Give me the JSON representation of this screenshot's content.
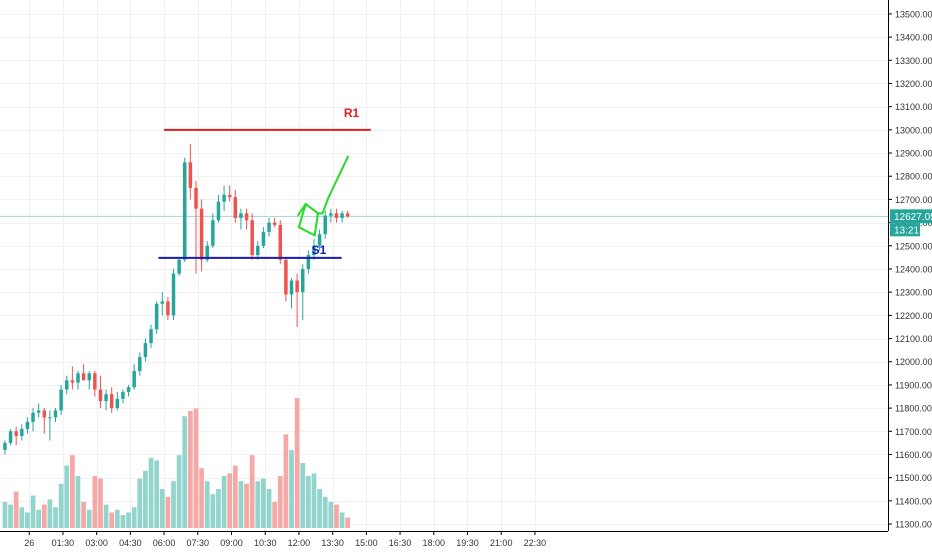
{
  "chart_data": {
    "type": "candlestick",
    "price_axis": {
      "ylim": [
        11270,
        13560
      ],
      "ticks": [
        "13500.00",
        "13400.00",
        "13300.00",
        "13200.00",
        "13100.00",
        "13000.00",
        "12900.00",
        "12800.00",
        "12700.00",
        "12600.00",
        "12500.00",
        "12400.00",
        "12300.00",
        "12200.00",
        "12100.00",
        "12000.00",
        "11900.00",
        "11800.00",
        "11700.00",
        "11600.00",
        "11500.00",
        "11400.00",
        "11300.00"
      ]
    },
    "time_axis": {
      "range_hours": [
        -1.3,
        39.0
      ],
      "ticks": [
        {
          "label": "26",
          "h": 0
        },
        {
          "label": "01:30",
          "h": 1.5
        },
        {
          "label": "03:00",
          "h": 3.0
        },
        {
          "label": "04:30",
          "h": 4.5
        },
        {
          "label": "06:00",
          "h": 6.0
        },
        {
          "label": "07:30",
          "h": 7.5
        },
        {
          "label": "09:00",
          "h": 9.0
        },
        {
          "label": "10:30",
          "h": 10.5
        },
        {
          "label": "12:00",
          "h": 12.0
        },
        {
          "label": "13:30",
          "h": 13.5
        },
        {
          "label": "15:00",
          "h": 15.0
        },
        {
          "label": "16:30",
          "h": 16.5
        },
        {
          "label": "18:00",
          "h": 18.0
        },
        {
          "label": "19:30",
          "h": 19.5
        },
        {
          "label": "21:00",
          "h": 21.0
        },
        {
          "label": "22:30",
          "h": 22.5
        }
      ]
    },
    "volume_max": 100,
    "candles": [
      {
        "o": 11620,
        "h": 11660,
        "l": 11600,
        "c": 11650,
        "v": 20
      },
      {
        "o": 11650,
        "h": 11710,
        "l": 11640,
        "c": 11700,
        "v": 18
      },
      {
        "o": 11700,
        "h": 11720,
        "l": 11640,
        "c": 11680,
        "v": 28
      },
      {
        "o": 11680,
        "h": 11730,
        "l": 11660,
        "c": 11710,
        "v": 16
      },
      {
        "o": 11710,
        "h": 11760,
        "l": 11690,
        "c": 11740,
        "v": 12
      },
      {
        "o": 11740,
        "h": 11800,
        "l": 11700,
        "c": 11780,
        "v": 25
      },
      {
        "o": 11780,
        "h": 11820,
        "l": 11760,
        "c": 11790,
        "v": 14
      },
      {
        "o": 11790,
        "h": 11800,
        "l": 11690,
        "c": 11760,
        "v": 18
      },
      {
        "o": 11760,
        "h": 11790,
        "l": 11660,
        "c": 11760,
        "v": 22
      },
      {
        "o": 11760,
        "h": 11800,
        "l": 11740,
        "c": 11790,
        "v": 16
      },
      {
        "o": 11790,
        "h": 11900,
        "l": 11770,
        "c": 11880,
        "v": 34
      },
      {
        "o": 11880,
        "h": 11940,
        "l": 11860,
        "c": 11920,
        "v": 48
      },
      {
        "o": 11920,
        "h": 11980,
        "l": 11880,
        "c": 11910,
        "v": 56
      },
      {
        "o": 11910,
        "h": 11960,
        "l": 11880,
        "c": 11950,
        "v": 40
      },
      {
        "o": 11950,
        "h": 11990,
        "l": 11920,
        "c": 11920,
        "v": 20
      },
      {
        "o": 11920,
        "h": 11960,
        "l": 11880,
        "c": 11950,
        "v": 14
      },
      {
        "o": 11950,
        "h": 11960,
        "l": 11850,
        "c": 11880,
        "v": 40
      },
      {
        "o": 11880,
        "h": 11940,
        "l": 11800,
        "c": 11830,
        "v": 38
      },
      {
        "o": 11830,
        "h": 11880,
        "l": 11790,
        "c": 11860,
        "v": 18
      },
      {
        "o": 11860,
        "h": 11890,
        "l": 11780,
        "c": 11800,
        "v": 12
      },
      {
        "o": 11800,
        "h": 11870,
        "l": 11790,
        "c": 11840,
        "v": 14
      },
      {
        "o": 11840,
        "h": 11880,
        "l": 11820,
        "c": 11870,
        "v": 10
      },
      {
        "o": 11870,
        "h": 11900,
        "l": 11850,
        "c": 11890,
        "v": 12
      },
      {
        "o": 11890,
        "h": 11990,
        "l": 11880,
        "c": 11960,
        "v": 16
      },
      {
        "o": 11960,
        "h": 12040,
        "l": 11940,
        "c": 12020,
        "v": 38
      },
      {
        "o": 12020,
        "h": 12100,
        "l": 12000,
        "c": 12080,
        "v": 44
      },
      {
        "o": 12080,
        "h": 12160,
        "l": 12060,
        "c": 12140,
        "v": 54
      },
      {
        "o": 12140,
        "h": 12260,
        "l": 12120,
        "c": 12250,
        "v": 52
      },
      {
        "o": 12250,
        "h": 12300,
        "l": 12200,
        "c": 12260,
        "v": 30
      },
      {
        "o": 12260,
        "h": 12280,
        "l": 12180,
        "c": 12200,
        "v": 24
      },
      {
        "o": 12200,
        "h": 12400,
        "l": 12180,
        "c": 12380,
        "v": 36
      },
      {
        "o": 12380,
        "h": 12450,
        "l": 12370,
        "c": 12440,
        "v": 56
      },
      {
        "o": 12440,
        "h": 12880,
        "l": 12430,
        "c": 12860,
        "v": 86
      },
      {
        "o": 12860,
        "h": 12940,
        "l": 12700,
        "c": 12750,
        "v": 90
      },
      {
        "o": 12750,
        "h": 12780,
        "l": 12380,
        "c": 12660,
        "v": 92
      },
      {
        "o": 12660,
        "h": 12700,
        "l": 12390,
        "c": 12440,
        "v": 46
      },
      {
        "o": 12440,
        "h": 12520,
        "l": 12430,
        "c": 12500,
        "v": 36
      },
      {
        "o": 12500,
        "h": 12640,
        "l": 12490,
        "c": 12610,
        "v": 26
      },
      {
        "o": 12610,
        "h": 12720,
        "l": 12600,
        "c": 12690,
        "v": 30
      },
      {
        "o": 12690,
        "h": 12760,
        "l": 12650,
        "c": 12720,
        "v": 40
      },
      {
        "o": 12720,
        "h": 12760,
        "l": 12690,
        "c": 12710,
        "v": 42
      },
      {
        "o": 12710,
        "h": 12740,
        "l": 12600,
        "c": 12620,
        "v": 48
      },
      {
        "o": 12620,
        "h": 12660,
        "l": 12570,
        "c": 12640,
        "v": 36
      },
      {
        "o": 12640,
        "h": 12660,
        "l": 12570,
        "c": 12610,
        "v": 34
      },
      {
        "o": 12610,
        "h": 12640,
        "l": 12440,
        "c": 12460,
        "v": 56
      },
      {
        "o": 12460,
        "h": 12520,
        "l": 12440,
        "c": 12500,
        "v": 36
      },
      {
        "o": 12500,
        "h": 12580,
        "l": 12490,
        "c": 12560,
        "v": 38
      },
      {
        "o": 12560,
        "h": 12620,
        "l": 12540,
        "c": 12600,
        "v": 30
      },
      {
        "o": 12600,
        "h": 12620,
        "l": 12580,
        "c": 12590,
        "v": 20
      },
      {
        "o": 12590,
        "h": 12610,
        "l": 12420,
        "c": 12440,
        "v": 40
      },
      {
        "o": 12440,
        "h": 12450,
        "l": 12260,
        "c": 12290,
        "v": 72
      },
      {
        "o": 12290,
        "h": 12360,
        "l": 12230,
        "c": 12350,
        "v": 60
      },
      {
        "o": 12350,
        "h": 12380,
        "l": 12150,
        "c": 12300,
        "v": 100
      },
      {
        "o": 12300,
        "h": 12420,
        "l": 12180,
        "c": 12400,
        "v": 50
      },
      {
        "o": 12400,
        "h": 12480,
        "l": 12380,
        "c": 12460,
        "v": 40
      },
      {
        "o": 12460,
        "h": 12530,
        "l": 12440,
        "c": 12500,
        "v": 42
      },
      {
        "o": 12500,
        "h": 12570,
        "l": 12480,
        "c": 12550,
        "v": 30
      },
      {
        "o": 12550,
        "h": 12650,
        "l": 12530,
        "c": 12630,
        "v": 24
      },
      {
        "o": 12630,
        "h": 12660,
        "l": 12600,
        "c": 12640,
        "v": 20
      },
      {
        "o": 12640,
        "h": 12660,
        "l": 12600,
        "c": 12620,
        "v": 18
      },
      {
        "o": 12620,
        "h": 12650,
        "l": 12600,
        "c": 12640,
        "v": 12
      },
      {
        "o": 12640,
        "h": 12650,
        "l": 12620,
        "c": 12627,
        "v": 8
      }
    ],
    "start_hour": -1.08,
    "interval_hours": 0.25,
    "colors": {
      "up": "#26a69a",
      "down": "#ef5350",
      "up_volume": "#93d4cc",
      "down_volume": "#f4a9a7",
      "grid": "#eef0f3",
      "axis_text": "#333333",
      "axis_line": "#000000",
      "last_price_line": "#9ed6cf",
      "r1_line": "#e01e1e",
      "s1_line": "#1a1ab8",
      "projection": "#22dd22"
    },
    "drawings": {
      "r1": {
        "label": "R1",
        "price": 13000,
        "h_start": 6.0,
        "h_end": 15.2
      },
      "s1": {
        "label": "S1",
        "price": 12448,
        "h_start": 5.75,
        "h_end": 13.9
      },
      "projection_path": [
        {
          "h": 11.95,
          "p": 12630
        },
        {
          "h": 12.3,
          "p": 12680
        },
        {
          "h": 12.85,
          "p": 12640
        },
        {
          "h": 12.7,
          "p": 12545
        },
        {
          "h": 12.0,
          "p": 12580
        },
        {
          "h": 12.3,
          "p": 12680
        },
        {
          "h": 12.85,
          "p": 12640
        },
        {
          "h": 13.05,
          "p": 12640
        },
        {
          "h": 13.3,
          "p": 12705
        },
        {
          "h": 14.2,
          "p": 12888
        }
      ]
    },
    "last_price": {
      "value": "12627.05",
      "countdown": "13:21",
      "price": 12627.05,
      "partial_tick": "12"
    }
  }
}
